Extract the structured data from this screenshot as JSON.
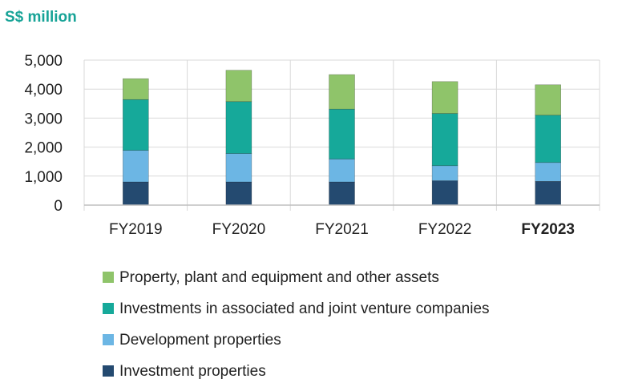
{
  "chart_data": {
    "type": "bar",
    "stacked": true,
    "unit_label": "S$ million",
    "categories": [
      "FY2019",
      "FY2020",
      "FY2021",
      "FY2022",
      "FY2023"
    ],
    "highlight_category": "FY2023",
    "ylim": [
      0,
      5000
    ],
    "yticks": [
      0,
      1000,
      2000,
      3000,
      4000,
      5000
    ],
    "ytick_labels": [
      "0",
      "1,000",
      "2,000",
      "3,000",
      "4,000",
      "5,000"
    ],
    "grid": true,
    "legend_position": "bottom",
    "series": [
      {
        "name": "Investment properties",
        "color": "#244a70",
        "values": [
          800,
          800,
          800,
          840,
          820
        ]
      },
      {
        "name": "Development properties",
        "color": "#6cb6e4",
        "values": [
          1090,
          980,
          790,
          520,
          650
        ]
      },
      {
        "name": "Investments in associated and joint venture companies",
        "color": "#16a99a",
        "values": [
          1750,
          1790,
          1720,
          1800,
          1630
        ]
      },
      {
        "name": "Property, plant and equipment and other assets",
        "color": "#8fc46a",
        "values": [
          720,
          1080,
          1190,
          1100,
          1050
        ]
      }
    ],
    "legend_order": [
      3,
      2,
      1,
      0
    ]
  },
  "colors": {
    "accent": "#17a397",
    "grid": "#d9d9d9",
    "axis": "#bfbfbf",
    "text": "#222222"
  }
}
